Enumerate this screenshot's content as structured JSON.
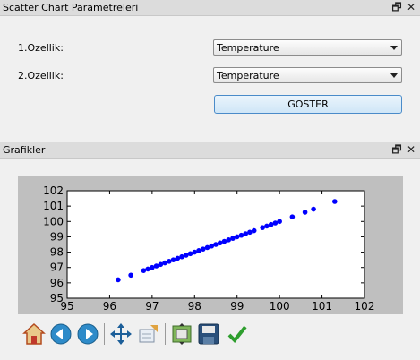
{
  "params_dock": {
    "title": "Scatter Chart Parametreleri",
    "feature1_label": "1.Ozellik:",
    "feature1_value": "Temperature",
    "feature2_label": "2.Ozellik:",
    "feature2_value": "Temperature",
    "button_label": "GOSTER"
  },
  "charts_dock": {
    "title": "Grafikler"
  },
  "chart_data": {
    "type": "scatter",
    "title": "",
    "xlabel": "",
    "ylabel": "",
    "xlim": [
      95,
      102
    ],
    "ylim": [
      95,
      102
    ],
    "xticks": [
      "95",
      "96",
      "97",
      "98",
      "99",
      "100",
      "101",
      "102"
    ],
    "yticks": [
      "95",
      "96",
      "97",
      "98",
      "99",
      "100",
      "101",
      "102"
    ],
    "marker_color": "#0000ff",
    "grid": false,
    "x": [
      96.2,
      96.5,
      96.8,
      96.9,
      97.0,
      97.1,
      97.2,
      97.3,
      97.4,
      97.5,
      97.6,
      97.7,
      97.8,
      97.9,
      98.0,
      98.1,
      98.2,
      98.3,
      98.4,
      98.5,
      98.6,
      98.7,
      98.8,
      98.9,
      99.0,
      99.1,
      99.2,
      99.3,
      99.4,
      99.6,
      99.7,
      99.8,
      99.9,
      100.0,
      100.3,
      100.6,
      100.8,
      101.3
    ],
    "y": [
      96.2,
      96.5,
      96.8,
      96.9,
      97.0,
      97.1,
      97.2,
      97.3,
      97.4,
      97.5,
      97.6,
      97.7,
      97.8,
      97.9,
      98.0,
      98.1,
      98.2,
      98.3,
      98.4,
      98.5,
      98.6,
      98.7,
      98.8,
      98.9,
      99.0,
      99.1,
      99.2,
      99.3,
      99.4,
      99.6,
      99.7,
      99.8,
      99.9,
      100.0,
      100.3,
      100.6,
      100.8,
      101.3
    ]
  },
  "toolbar": {
    "tools": [
      "home-icon",
      "back-icon",
      "forward-icon",
      "pan-icon",
      "zoom-icon",
      "subplots-icon",
      "save-icon",
      "check-icon"
    ]
  }
}
